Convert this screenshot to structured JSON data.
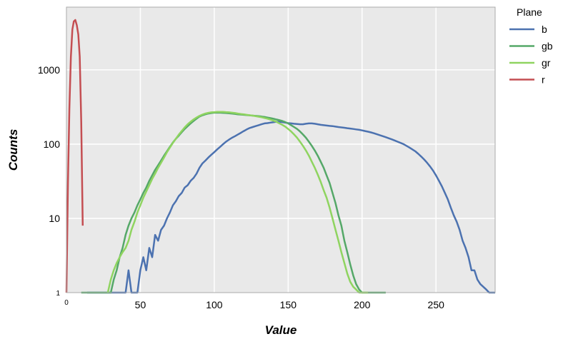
{
  "chart_data": {
    "type": "line",
    "title": "",
    "xlabel": "Value",
    "ylabel": "Counts",
    "xlim": [
      0,
      290
    ],
    "ylim": [
      1,
      7000
    ],
    "y_scale": "log",
    "grid": true,
    "x_ticks": [
      {
        "v": 0,
        "label": "0"
      },
      {
        "v": 50,
        "label": "50"
      },
      {
        "v": 100,
        "label": "100"
      },
      {
        "v": 150,
        "label": "150"
      },
      {
        "v": 200,
        "label": "200"
      },
      {
        "v": 250,
        "label": "250"
      }
    ],
    "y_ticks": [
      {
        "v": 1,
        "label": "1"
      },
      {
        "v": 10,
        "label": "10"
      },
      {
        "v": 100,
        "label": "100"
      },
      {
        "v": 1000,
        "label": "1000"
      }
    ],
    "legend": {
      "title": "Plane",
      "placement": "outside-top-right"
    },
    "background_color": "#e9e9e9",
    "series": [
      {
        "name": "b",
        "color": "#4c72b0",
        "x": [
          14,
          40,
          42,
          44,
          46,
          48,
          50,
          52,
          54,
          56,
          58,
          60,
          62,
          64,
          66,
          68,
          70,
          72,
          74,
          76,
          78,
          80,
          82,
          84,
          86,
          88,
          90,
          92,
          94,
          96,
          98,
          100,
          102,
          104,
          106,
          108,
          110,
          112,
          114,
          116,
          118,
          120,
          122,
          124,
          126,
          128,
          130,
          132,
          134,
          136,
          138,
          140,
          142,
          144,
          146,
          148,
          150,
          152,
          154,
          156,
          158,
          160,
          162,
          164,
          166,
          168,
          170,
          172,
          174,
          176,
          178,
          180,
          182,
          184,
          186,
          188,
          190,
          192,
          194,
          196,
          198,
          200,
          202,
          204,
          206,
          208,
          210,
          212,
          214,
          216,
          218,
          220,
          222,
          224,
          226,
          228,
          230,
          232,
          234,
          236,
          238,
          240,
          242,
          244,
          246,
          248,
          250,
          252,
          254,
          256,
          258,
          260,
          262,
          264,
          266,
          268,
          270,
          272,
          274,
          276,
          278,
          280,
          282,
          284,
          286,
          288,
          290
        ],
        "y": [
          1,
          1,
          2,
          1,
          1,
          1,
          2,
          3,
          2,
          4,
          3,
          6,
          5,
          7,
          8,
          10,
          12,
          15,
          17,
          20,
          22,
          26,
          28,
          32,
          35,
          40,
          48,
          55,
          60,
          66,
          72,
          78,
          85,
          92,
          100,
          108,
          115,
          122,
          128,
          135,
          142,
          150,
          158,
          165,
          170,
          175,
          180,
          185,
          190,
          192,
          195,
          197,
          200,
          200,
          198,
          195,
          192,
          190,
          188,
          187,
          185,
          185,
          188,
          190,
          190,
          188,
          185,
          182,
          180,
          178,
          176,
          175,
          172,
          170,
          168,
          166,
          164,
          162,
          160,
          158,
          156,
          153,
          150,
          147,
          144,
          140,
          136,
          132,
          128,
          124,
          120,
          116,
          112,
          108,
          104,
          100,
          95,
          90,
          85,
          80,
          74,
          68,
          62,
          56,
          50,
          44,
          38,
          32,
          27,
          22,
          18,
          14,
          11,
          9,
          7,
          5,
          4,
          3,
          2,
          2,
          1.5,
          1.3,
          1.2,
          1.1,
          1,
          1,
          1
        ]
      },
      {
        "name": "gb",
        "color": "#55a868",
        "x": [
          10,
          15,
          20,
          25,
          28,
          30,
          32,
          34,
          36,
          38,
          40,
          42,
          44,
          46,
          48,
          50,
          52,
          54,
          56,
          58,
          60,
          62,
          64,
          66,
          68,
          70,
          72,
          74,
          76,
          78,
          80,
          82,
          84,
          86,
          88,
          90,
          92,
          94,
          96,
          98,
          100,
          102,
          104,
          106,
          108,
          110,
          112,
          114,
          116,
          118,
          120,
          122,
          124,
          126,
          128,
          130,
          132,
          134,
          136,
          138,
          140,
          142,
          144,
          146,
          148,
          150,
          152,
          154,
          156,
          158,
          160,
          162,
          164,
          166,
          168,
          170,
          172,
          174,
          176,
          178,
          180,
          182,
          184,
          186,
          188,
          190,
          192,
          194,
          196,
          198,
          200,
          202,
          204,
          210,
          216
        ],
        "y": [
          1,
          1,
          1,
          1,
          1,
          1,
          1.5,
          2,
          3,
          4,
          6,
          8,
          10,
          12,
          15,
          18,
          22,
          26,
          32,
          38,
          45,
          52,
          60,
          70,
          80,
          92,
          105,
          118,
          130,
          145,
          160,
          175,
          190,
          205,
          220,
          235,
          245,
          252,
          258,
          262,
          265,
          265,
          265,
          264,
          262,
          260,
          258,
          255,
          252,
          250,
          248,
          246,
          244,
          242,
          240,
          238,
          235,
          232,
          228,
          224,
          220,
          215,
          210,
          205,
          198,
          190,
          180,
          170,
          160,
          148,
          135,
          122,
          108,
          95,
          82,
          70,
          58,
          48,
          38,
          30,
          22,
          16,
          11,
          8,
          5,
          3.5,
          2.4,
          1.7,
          1.3,
          1.1,
          1,
          1,
          1,
          1,
          1
        ]
      },
      {
        "name": "gr",
        "color": "#8fd460",
        "x": [
          28,
          30,
          32,
          34,
          36,
          38,
          40,
          42,
          44,
          46,
          48,
          50,
          52,
          54,
          56,
          58,
          60,
          62,
          64,
          66,
          68,
          70,
          72,
          74,
          76,
          78,
          80,
          82,
          84,
          86,
          88,
          90,
          92,
          94,
          96,
          98,
          100,
          102,
          104,
          106,
          108,
          110,
          112,
          114,
          116,
          118,
          120,
          122,
          124,
          126,
          128,
          130,
          132,
          134,
          136,
          138,
          140,
          142,
          144,
          146,
          148,
          150,
          152,
          154,
          156,
          158,
          160,
          162,
          164,
          166,
          168,
          170,
          172,
          174,
          176,
          178,
          180,
          182,
          184,
          186,
          188,
          190,
          192,
          194,
          196,
          198,
          200,
          202,
          204
        ],
        "y": [
          1,
          1.5,
          2,
          2.5,
          3,
          3.5,
          4,
          5,
          7,
          9,
          12,
          15,
          19,
          23,
          28,
          34,
          40,
          48,
          56,
          66,
          78,
          90,
          104,
          118,
          134,
          150,
          168,
          185,
          200,
          215,
          228,
          240,
          250,
          258,
          264,
          268,
          270,
          272,
          272,
          272,
          270,
          268,
          265,
          262,
          258,
          255,
          252,
          248,
          245,
          242,
          238,
          234,
          230,
          225,
          220,
          214,
          207,
          200,
          191,
          182,
          172,
          160,
          148,
          135,
          122,
          108,
          95,
          82,
          70,
          58,
          48,
          39,
          31,
          24,
          19,
          14,
          10,
          7,
          5,
          3.5,
          2.5,
          1.8,
          1.4,
          1.2,
          1.1,
          1,
          1,
          1,
          1
        ]
      },
      {
        "name": "r",
        "color": "#c44e52",
        "x": [
          0,
          1,
          2,
          3,
          4,
          5,
          6,
          7,
          8,
          9,
          10,
          11
        ],
        "y": [
          1,
          30,
          300,
          1500,
          3500,
          4500,
          4700,
          4000,
          3000,
          1500,
          200,
          8
        ]
      }
    ]
  }
}
